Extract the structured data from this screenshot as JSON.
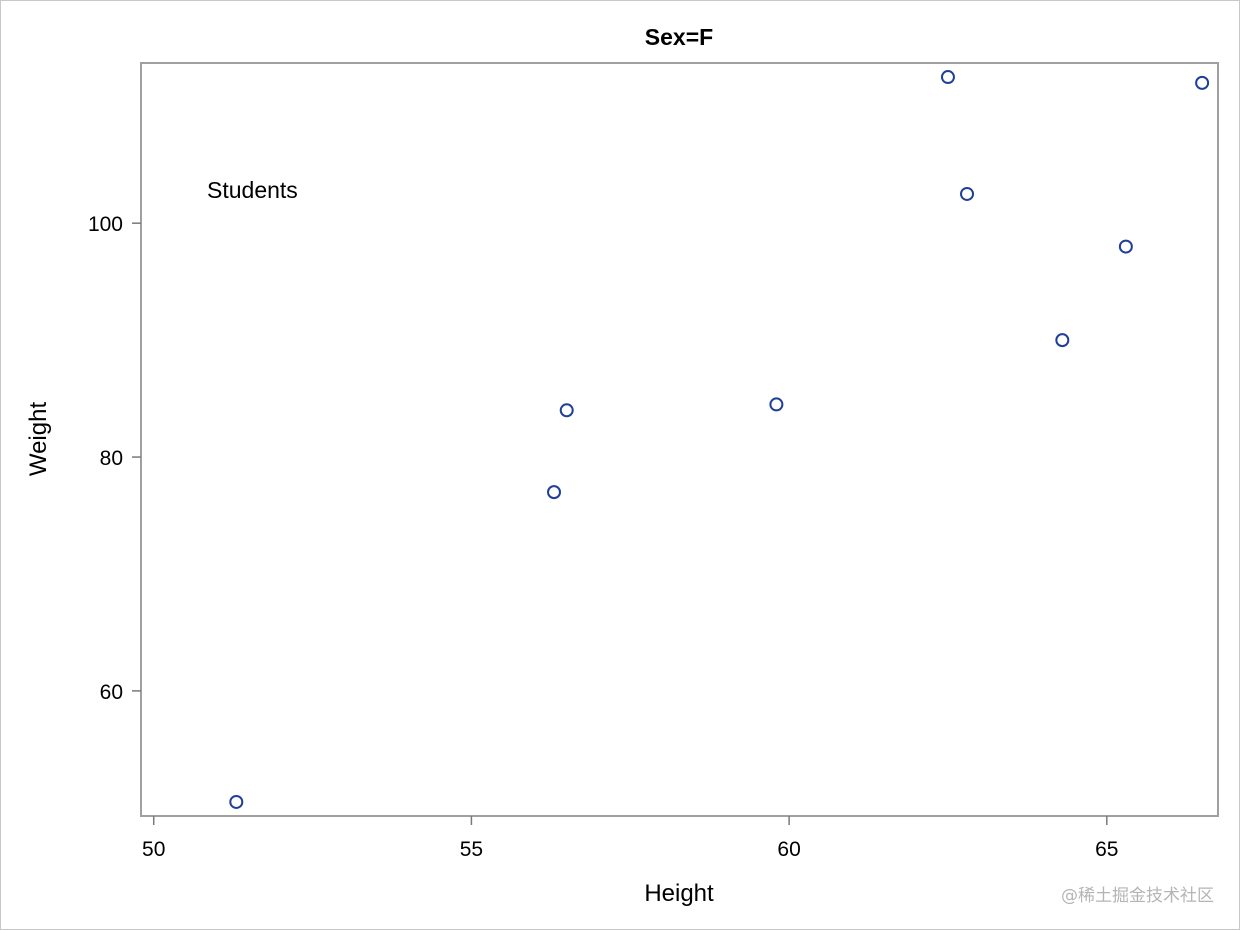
{
  "chart_data": {
    "type": "scatter",
    "title": "Sex=F",
    "xlabel": "Height",
    "ylabel": "Weight",
    "annotation": "Students",
    "xlim": [
      49.8,
      66.75
    ],
    "ylim": [
      49.3,
      113.7
    ],
    "xticks": [
      50,
      55,
      60,
      65
    ],
    "yticks": [
      60,
      80,
      100
    ],
    "grid": false,
    "marker_color": "#1f3f99",
    "points": [
      {
        "x": 51.3,
        "y": 50.5
      },
      {
        "x": 56.3,
        "y": 77.0
      },
      {
        "x": 56.5,
        "y": 84.0
      },
      {
        "x": 59.8,
        "y": 84.5
      },
      {
        "x": 62.5,
        "y": 112.5
      },
      {
        "x": 62.8,
        "y": 102.5
      },
      {
        "x": 64.3,
        "y": 90.0
      },
      {
        "x": 65.3,
        "y": 98.0
      },
      {
        "x": 66.5,
        "y": 112.0
      }
    ]
  },
  "watermark": "@稀土掘金技术社区"
}
